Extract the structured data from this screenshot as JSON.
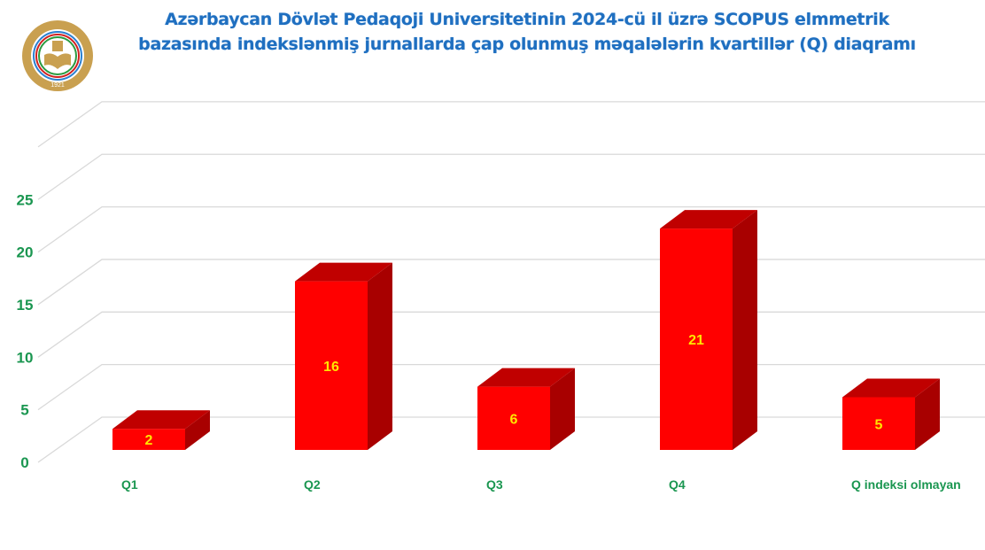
{
  "title_lines": [
    "Azərbaycan Dövlət Pedaqoji Universitetinin 2024-cü il üzrə SCOPUS elmmetrik",
    "bazasında indekslənmiş jurnallarda çap olunmuş məqalələrin kvartillər (Q) diaqramı"
  ],
  "logo": {
    "text": "AZƏRBAYCAN DÖVLƏT PEDAQOJİ UNİVERSİTETİ",
    "year": "1921"
  },
  "chart_data": {
    "type": "bar",
    "style": "3d-column",
    "title": "Azərbaycan Dövlət Pedaqoji Universitetinin 2024-cü il üzrə SCOPUS elmmetrik bazasında indekslənmiş jurnallarda çap olunmuş məqalələrin kvartillər (Q) diaqramı",
    "categories": [
      "Q1",
      "Q2",
      "Q3",
      "Q4",
      "Q indeksi olmayan"
    ],
    "values": [
      2,
      16,
      6,
      21,
      5
    ],
    "ylim": [
      0,
      25
    ],
    "yticks": [
      0,
      5,
      10,
      15,
      20,
      25
    ],
    "grid": true,
    "legend": "none",
    "data_labels": true,
    "colors": {
      "bar": "#ff0000",
      "bar_side": "#a80000",
      "bar_top": "#c00000",
      "data_label": "#ffe600",
      "axis_text": "#1a9650",
      "title": "#1f6fc0",
      "grid": "#d9d9d9"
    }
  }
}
